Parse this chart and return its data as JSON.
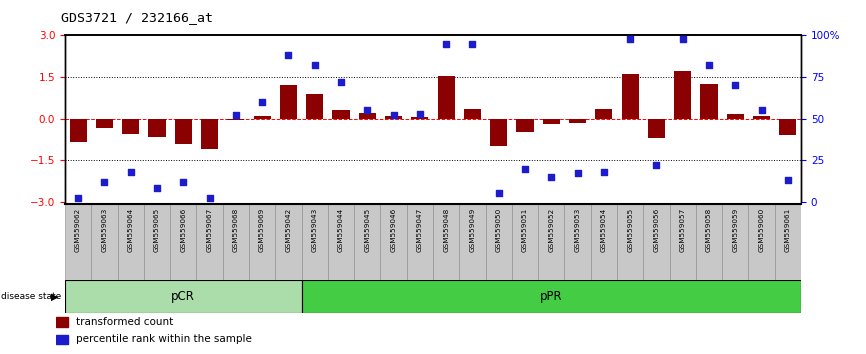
{
  "title": "GDS3721 / 232166_at",
  "samples": [
    "GSM559062",
    "GSM559063",
    "GSM559064",
    "GSM559065",
    "GSM559066",
    "GSM559067",
    "GSM559068",
    "GSM559069",
    "GSM559042",
    "GSM559043",
    "GSM559044",
    "GSM559045",
    "GSM559046",
    "GSM559047",
    "GSM559048",
    "GSM559049",
    "GSM559050",
    "GSM559051",
    "GSM559052",
    "GSM559053",
    "GSM559054",
    "GSM559055",
    "GSM559056",
    "GSM559057",
    "GSM559058",
    "GSM559059",
    "GSM559060",
    "GSM559061"
  ],
  "bar_values": [
    -0.85,
    -0.35,
    -0.55,
    -0.65,
    -0.9,
    -1.1,
    -0.05,
    0.1,
    1.2,
    0.9,
    0.3,
    0.2,
    0.1,
    0.05,
    1.55,
    0.35,
    -1.0,
    -0.5,
    -0.2,
    -0.15,
    0.35,
    1.6,
    -0.7,
    1.7,
    1.25,
    0.15,
    0.1,
    -0.6
  ],
  "percentile_values": [
    2,
    12,
    18,
    8,
    12,
    2,
    52,
    60,
    88,
    82,
    72,
    55,
    52,
    53,
    95,
    95,
    5,
    20,
    15,
    17,
    18,
    98,
    22,
    98,
    82,
    70,
    55,
    13
  ],
  "pcr_count": 9,
  "bar_color": "#8B0000",
  "dot_color": "#1C1CCC",
  "background_color": "#ffffff",
  "pcr_color": "#AADDAA",
  "ppr_color": "#44CC44",
  "label_bg_color": "#C8C8C8",
  "ylim": [
    -3,
    3
  ],
  "yticks_left": [
    -3,
    -1.5,
    0,
    1.5,
    3
  ],
  "yticks_right": [
    0,
    25,
    50,
    75,
    100
  ],
  "dotted_lines": [
    -1.5,
    1.5
  ]
}
